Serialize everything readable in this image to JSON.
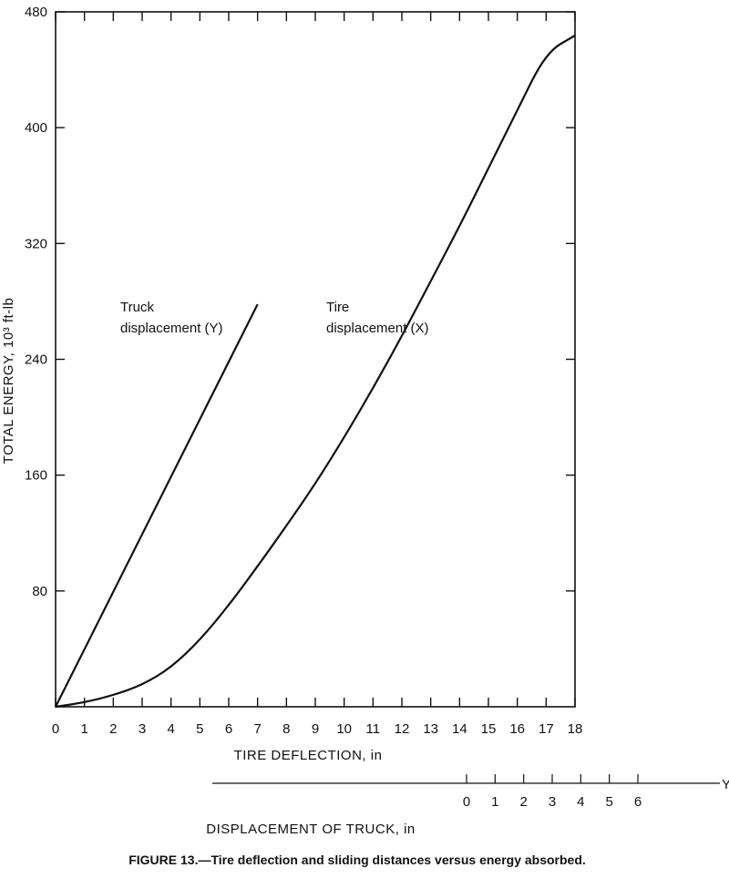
{
  "caption": "FIGURE 13.—Tire deflection and sliding distances versus energy absorbed.",
  "chart_data": {
    "type": "line",
    "xlabel": "TIRE DEFLECTION, in",
    "ylabel": "TOTAL ENERGY, 10³ ft-lb",
    "xlim": [
      0,
      18
    ],
    "ylim": [
      0,
      480
    ],
    "x_ticks": [
      "0",
      "1",
      "2",
      "3",
      "4",
      "5",
      "6",
      "7",
      "8",
      "9",
      "10",
      "11",
      "12",
      "13",
      "14",
      "15",
      "16",
      "17",
      "18"
    ],
    "y_ticks": [
      "80",
      "160",
      "240",
      "320",
      "400",
      "480"
    ],
    "grid": false,
    "series": [
      {
        "name": "Tire displacement (X)",
        "label_lines": [
          "Tire",
          "displacement (X)"
        ],
        "x": [
          0,
          1,
          2,
          3,
          4,
          5,
          6,
          7,
          8,
          9,
          10,
          11,
          12,
          13,
          14,
          15,
          16,
          17,
          18
        ],
        "y": [
          0,
          3,
          8,
          15,
          27,
          46,
          70,
          97,
          125,
          154,
          186,
          220,
          256,
          294,
          332,
          372,
          412,
          452,
          496
        ]
      },
      {
        "name": "Truck displacement (Y)",
        "label_lines": [
          "Truck",
          "displacement (Y)"
        ],
        "x_units": "truck displacement, in",
        "x": [
          0,
          6
        ],
        "y": [
          0,
          278
        ]
      }
    ],
    "secondary_x_axis": {
      "label": "DISPLACEMENT OF TRUCK, in",
      "end_label": "Y",
      "ticks": [
        "0",
        "1",
        "2",
        "3",
        "4",
        "5",
        "6"
      ]
    }
  }
}
